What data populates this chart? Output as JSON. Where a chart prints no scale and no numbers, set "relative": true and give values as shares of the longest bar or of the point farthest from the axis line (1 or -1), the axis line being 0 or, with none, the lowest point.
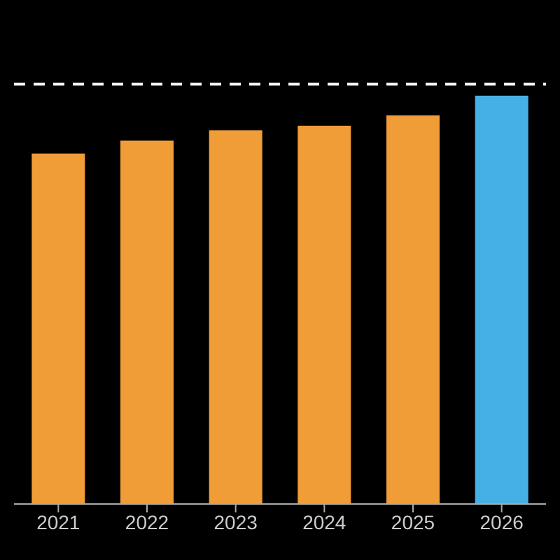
{
  "chart_data": {
    "type": "bar",
    "relative": true,
    "categories": [
      "2021",
      "2022",
      "2023",
      "2024",
      "2025",
      "2026"
    ],
    "values": [
      0.858,
      0.89,
      0.915,
      0.926,
      0.952,
      1
    ],
    "colors": [
      "#f09d38",
      "#f09d38",
      "#f09d38",
      "#f09d38",
      "#f09d38",
      "#45b0e5"
    ],
    "ref_lines": [
      {
        "axis": "y",
        "value": 1.028,
        "label": null,
        "color": "#ffffff",
        "line_style": "dashed"
      }
    ]
  }
}
